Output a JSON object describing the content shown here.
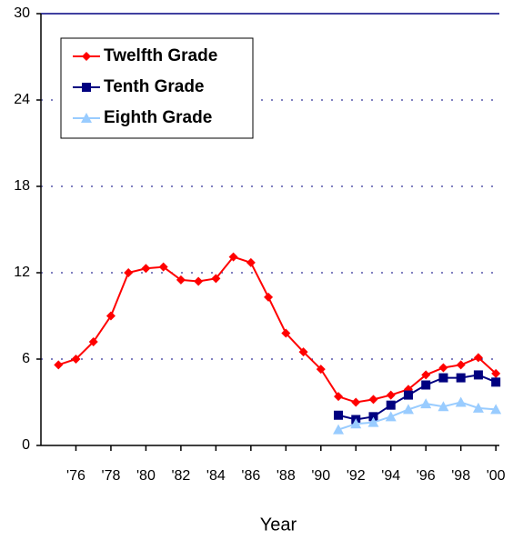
{
  "chart_data": {
    "type": "line",
    "x_label": "Year",
    "x": [
      1975,
      1976,
      1977,
      1978,
      1979,
      1980,
      1981,
      1982,
      1983,
      1984,
      1985,
      1986,
      1987,
      1988,
      1989,
      1990,
      1991,
      1992,
      1993,
      1994,
      1995,
      1996,
      1997,
      1998,
      1999,
      2000
    ],
    "series": [
      {
        "name": "Twelfth Grade",
        "color": "#ff0000",
        "marker": "diamond",
        "values": [
          5.6,
          6.0,
          7.2,
          9.0,
          12.0,
          12.3,
          12.4,
          11.5,
          11.4,
          11.6,
          13.1,
          12.7,
          10.3,
          7.8,
          6.5,
          5.3,
          3.4,
          3.0,
          3.2,
          3.5,
          3.9,
          4.9,
          5.4,
          5.6,
          6.1,
          5.0
        ]
      },
      {
        "name": "Tenth Grade",
        "color": "#000080",
        "marker": "square",
        "values": [
          null,
          null,
          null,
          null,
          null,
          null,
          null,
          null,
          null,
          null,
          null,
          null,
          null,
          null,
          null,
          null,
          2.1,
          1.8,
          2.0,
          2.8,
          3.5,
          4.2,
          4.7,
          4.7,
          4.9,
          4.4
        ]
      },
      {
        "name": "Eighth Grade",
        "color": "#99ccff",
        "marker": "triangle",
        "values": [
          null,
          null,
          null,
          null,
          null,
          null,
          null,
          null,
          null,
          null,
          null,
          null,
          null,
          null,
          null,
          null,
          1.1,
          1.5,
          1.6,
          2.0,
          2.5,
          2.9,
          2.7,
          3.0,
          2.6,
          2.5
        ]
      }
    ],
    "xlim": [
      1974,
      2000.2
    ],
    "xticks": [
      {
        "value": 1976,
        "label": "'76"
      },
      {
        "value": 1978,
        "label": "'78"
      },
      {
        "value": 1980,
        "label": "'80"
      },
      {
        "value": 1982,
        "label": "'82"
      },
      {
        "value": 1984,
        "label": "'84"
      },
      {
        "value": 1986,
        "label": "'86"
      },
      {
        "value": 1988,
        "label": "'88"
      },
      {
        "value": 1990,
        "label": "'90"
      },
      {
        "value": 1992,
        "label": "'92"
      },
      {
        "value": 1994,
        "label": "'94"
      },
      {
        "value": 1996,
        "label": "'96"
      },
      {
        "value": 1998,
        "label": "'98"
      },
      {
        "value": 2000,
        "label": "'00"
      }
    ],
    "ylim": [
      0,
      30
    ],
    "yticks": [
      0,
      6,
      12,
      18,
      24,
      30
    ],
    "grid": true,
    "legend": "top-left"
  }
}
